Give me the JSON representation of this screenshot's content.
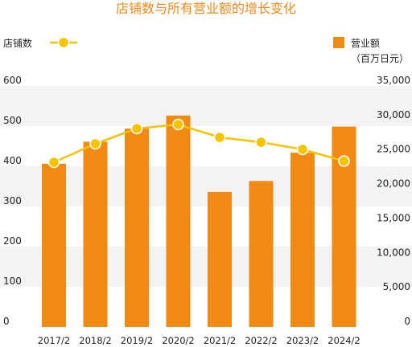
{
  "chart_data": {
    "type": "bar",
    "title": "店铺数与所有营业额的增长变化",
    "categories": [
      "2017/2",
      "2018/2",
      "2019/2",
      "2020/2",
      "2021/2",
      "2022/2",
      "2023/2",
      "2024/2"
    ],
    "series": [
      {
        "name": "营业额",
        "type": "bar",
        "axis": "right",
        "values": [
          23700,
          26900,
          28800,
          30700,
          19600,
          21200,
          25300,
          29100
        ]
      },
      {
        "name": "店铺数",
        "type": "line",
        "axis": "left",
        "values": [
          410,
          456,
          494,
          504,
          472,
          460,
          442,
          413
        ]
      }
    ],
    "y_left": {
      "ylim": [
        0,
        600
      ],
      "ticks": [
        "0",
        "100",
        "200",
        "300",
        "400",
        "500",
        "600"
      ]
    },
    "y_right": {
      "ylim": [
        0,
        35000
      ],
      "unit": "（百万日元）",
      "ticks": [
        "0",
        "5,000",
        "10,000",
        "15,000",
        "20,000",
        "25,000",
        "30,000",
        "35,000"
      ]
    },
    "legend": {
      "left": "店铺数",
      "right": "营业额",
      "right_unit": "（百万日元）"
    },
    "colors": {
      "bar": "#f18a13",
      "line": "#f5c400",
      "title": "#ee8a1c",
      "band": "#f3f3f3"
    }
  }
}
